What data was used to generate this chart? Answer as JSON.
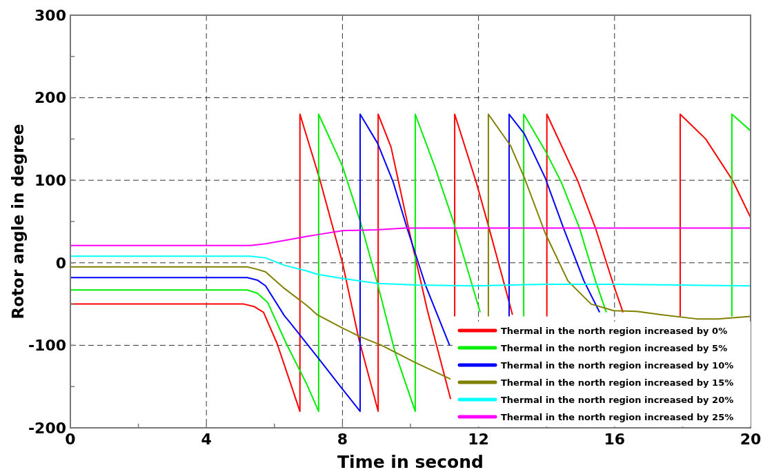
{
  "chart_data": {
    "type": "line",
    "xlabel": "Time in second",
    "ylabel": "Rotor angle in degree",
    "xlim": [
      0,
      20
    ],
    "ylim": [
      -200,
      300
    ],
    "xticks": [
      0,
      {
        "value": 2,
        "label": null
      },
      4,
      {
        "value": 6,
        "label": null
      },
      8,
      {
        "value": 10,
        "label": null
      },
      12,
      {
        "value": 14,
        "label": null
      },
      16,
      {
        "value": 18,
        "label": null
      },
      20
    ],
    "yticks": [
      -200,
      {
        "value": -150,
        "label": null
      },
      -100,
      {
        "value": -50,
        "label": null
      },
      0,
      {
        "value": 50,
        "label": null
      },
      100,
      {
        "value": 150,
        "label": null
      },
      200,
      {
        "value": 250,
        "label": null
      },
      300
    ],
    "grid": true,
    "legend": "bottom right",
    "line_style": "solid",
    "marker": "none",
    "series": [
      {
        "name": "Thermal in the north region increased by 0%",
        "color": "#ff0000",
        "x": [
          0,
          5.1,
          5.4,
          5.68,
          6.08,
          6.75,
          6.75,
          7.32,
          8.0,
          8.48,
          9.05,
          9.05,
          9.43,
          9.96,
          10.5,
          11.18
        ],
        "values": [
          -50,
          -50,
          -53,
          -60,
          -98,
          -180,
          180,
          103,
          0,
          -92,
          -180,
          180,
          140,
          39,
          -58,
          -165
        ]
      },
      {
        "color": "#ff0000",
        "x": [
          11.3,
          11.3,
          11.93,
          12.27,
          12.68,
          13.0
        ],
        "values": [
          -65,
          180,
          98,
          48,
          -14,
          -63
        ]
      },
      {
        "color": "#ff0000",
        "x": [
          14.01,
          14.01,
          14.91,
          15.44,
          15.98,
          16.25
        ],
        "values": [
          -65,
          180,
          100,
          42,
          -28,
          -60
        ]
      },
      {
        "color": "#ff0000",
        "x": [
          17.93,
          17.93,
          18.68,
          19.47,
          20
        ],
        "values": [
          -65,
          180,
          150,
          100,
          55
        ]
      },
      {
        "name": "Thermal in the north region increased by 5%",
        "color": "#00ee00",
        "x": [
          0,
          5.2,
          5.5,
          5.8,
          6.35,
          6.96,
          7.3,
          7.3,
          8.0,
          8.54,
          9.03,
          9.55,
          10.14,
          10.14,
          10.71,
          11.26,
          11.72,
          12.05
        ],
        "values": [
          -33,
          -33,
          -37,
          -48,
          -98,
          -148,
          -180,
          180,
          117,
          48,
          -25,
          -109,
          -180,
          180,
          117,
          50,
          -14,
          -60
        ]
      },
      {
        "color": "#00ee00",
        "x": [
          13.33,
          13.33,
          13.96,
          14.43,
          14.97,
          15.44,
          15.76
        ],
        "values": [
          -65,
          180,
          136,
          98,
          42,
          -22,
          -60
        ]
      },
      {
        "color": "#00ee00",
        "x": [
          19.45,
          19.45,
          20
        ],
        "values": [
          -65,
          180,
          160
        ]
      },
      {
        "name": "Thermal in the north region increased by 10%",
        "color": "#0000ff",
        "x": [
          0,
          5.2,
          5.5,
          5.74,
          6.29,
          6.45,
          7.26,
          8.0,
          8.52,
          8.52,
          9.03,
          9.49,
          9.9,
          10.45,
          11.15
        ],
        "values": [
          -18,
          -18,
          -21,
          -28,
          -64,
          -72,
          -114,
          -153,
          -180,
          180,
          145,
          98,
          42,
          -28,
          -100
        ]
      },
      {
        "color": "#0000ff",
        "x": [
          12.9,
          12.9,
          13.35,
          13.96,
          14.5,
          15.1,
          15.56
        ],
        "values": [
          -65,
          180,
          156,
          103,
          42,
          -22,
          -60
        ]
      },
      {
        "name": "Thermal in the north region increased by 15%",
        "color": "#808000",
        "x": [
          0,
          5.2,
          5.5,
          5.74,
          6.29,
          6.96,
          7.26,
          8.0,
          8.54,
          9.15,
          10.1,
          11.18
        ],
        "values": [
          -5,
          -5,
          -8,
          -11,
          -31,
          -52,
          -63,
          -79,
          -90,
          -100,
          -120,
          -141
        ]
      },
      {
        "color": "#808000",
        "x": [
          12.29,
          12.29,
          12.94,
          13.35,
          13.96,
          14.63,
          15.31,
          15.98,
          16.65,
          17.4,
          18.42,
          19.03,
          20
        ],
        "values": [
          -65,
          180,
          142,
          103,
          36,
          -22,
          -50,
          -58,
          -59,
          -63,
          -68,
          -68,
          -65
        ]
      },
      {
        "name": "Thermal in the north region increased by 20%",
        "color": "#00ffff",
        "x": [
          0,
          5.27,
          5.74,
          6.29,
          6.96,
          7.26,
          8.0,
          9.03,
          10.16,
          11.87,
          14.0,
          16.0,
          17.9,
          20
        ],
        "values": [
          8,
          8,
          6,
          -3,
          -10,
          -14,
          -19,
          -25,
          -27,
          -28,
          -26,
          -26,
          -27,
          -28
        ]
      },
      {
        "name": "Thermal in the north region increased by 25%",
        "color": "#ff00ff",
        "x": [
          0,
          5.3,
          5.74,
          6.29,
          6.96,
          7.26,
          8.0,
          9.03,
          9.84,
          20
        ],
        "values": [
          21,
          21,
          23,
          27,
          32,
          34,
          39,
          40,
          42,
          42
        ]
      }
    ]
  }
}
